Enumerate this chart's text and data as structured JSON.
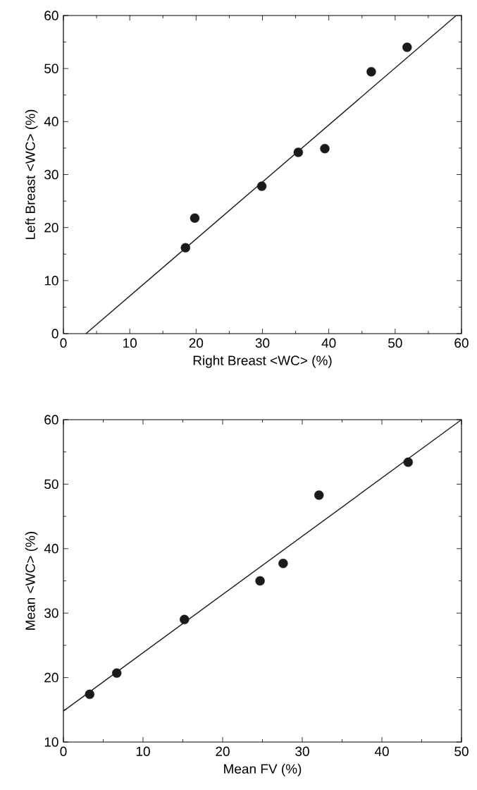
{
  "chart_data": [
    {
      "type": "scatter",
      "xlabel": "Right Breast <WC> (%)",
      "ylabel": "Left Breast <WC> (%)",
      "xlim": [
        0,
        60
      ],
      "ylim": [
        0,
        60
      ],
      "xticks": [
        0,
        10,
        20,
        30,
        40,
        50,
        60
      ],
      "yticks": [
        0,
        10,
        20,
        30,
        40,
        50,
        60
      ],
      "marker": "circle",
      "series": [
        {
          "color": "#1a1a1a",
          "x": [
            18.4,
            19.8,
            29.9,
            35.4,
            39.4,
            46.4,
            51.8
          ],
          "values": [
            16.2,
            21.8,
            27.8,
            34.2,
            34.9,
            49.4,
            54.0
          ]
        },
        {
          "type": "line",
          "color": "#1a1a1a",
          "marker": "none",
          "x": [
            3.4,
            59.2
          ],
          "values": [
            0,
            60
          ]
        }
      ]
    },
    {
      "type": "scatter",
      "xlabel": "Mean FV (%)",
      "ylabel": "Mean <WC> (%)",
      "xlim": [
        0,
        50
      ],
      "ylim": [
        10,
        60
      ],
      "xticks": [
        0,
        10,
        20,
        30,
        40,
        50
      ],
      "yticks": [
        10,
        20,
        30,
        40,
        50,
        60
      ],
      "marker": "circle",
      "series": [
        {
          "color": "#1a1a1a",
          "x": [
            3.3,
            6.7,
            15.2,
            24.7,
            27.6,
            32.1,
            43.3
          ],
          "values": [
            17.4,
            20.7,
            29.0,
            35.0,
            37.7,
            48.3,
            53.4
          ]
        },
        {
          "type": "line",
          "color": "#1a1a1a",
          "marker": "none",
          "x": [
            0,
            50
          ],
          "values": [
            14.8,
            60
          ]
        }
      ]
    }
  ]
}
